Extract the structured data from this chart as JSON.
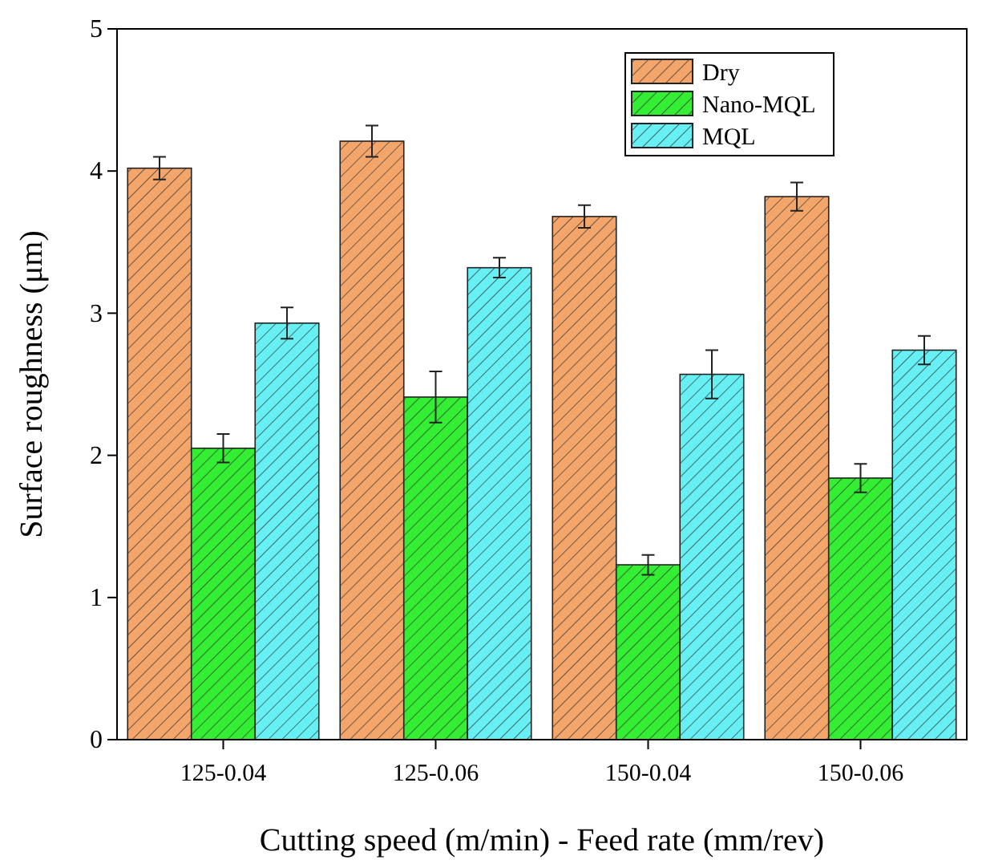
{
  "chart_data": {
    "type": "bar",
    "xlabel": "Cutting speed (m/min) - Feed rate (mm/rev)",
    "ylabel": "Surface roughness (μm)",
    "categories": [
      "125-0.04",
      "125-0.06",
      "150-0.04",
      "150-0.06"
    ],
    "series": [
      {
        "name": "Dry",
        "color": "#f4a56a",
        "values": [
          4.02,
          4.21,
          3.68,
          3.82
        ],
        "errors": [
          0.08,
          0.11,
          0.08,
          0.1
        ]
      },
      {
        "name": "Nano-MQL",
        "color": "#33ee33",
        "values": [
          2.05,
          2.41,
          1.23,
          1.84
        ],
        "errors": [
          0.1,
          0.18,
          0.07,
          0.1
        ]
      },
      {
        "name": "MQL",
        "color": "#66f0f4",
        "values": [
          2.93,
          3.32,
          2.57,
          2.74
        ],
        "errors": [
          0.11,
          0.07,
          0.17,
          0.1
        ]
      }
    ],
    "ylim": [
      0,
      5
    ],
    "yticks": [
      0,
      1,
      2,
      3,
      4,
      5
    ],
    "grid": false,
    "legend": "top right"
  }
}
